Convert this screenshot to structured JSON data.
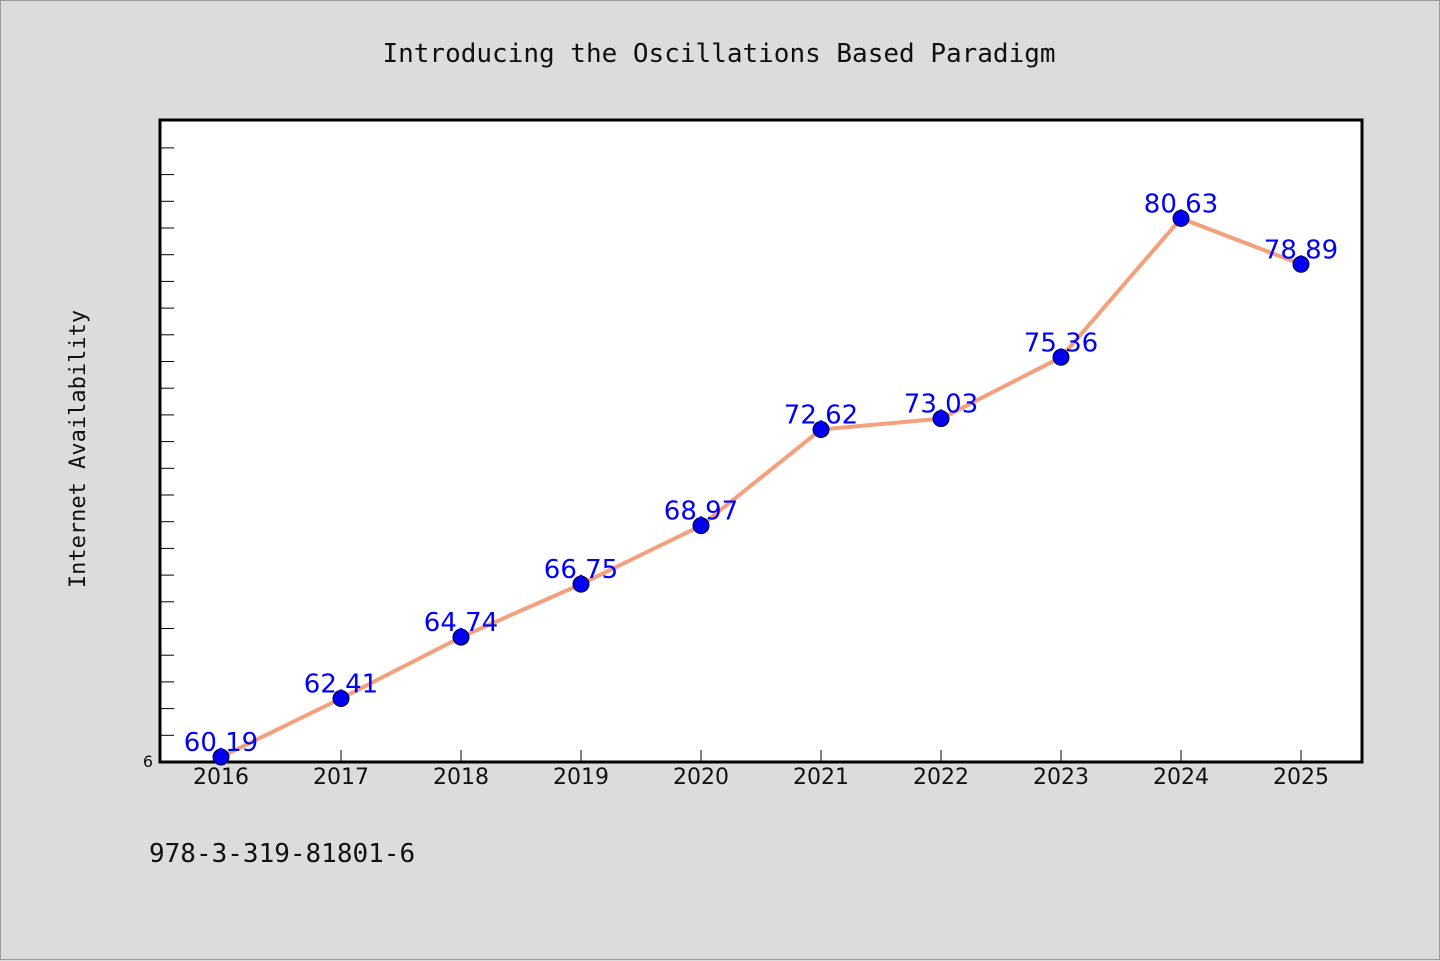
{
  "chart_data": {
    "type": "line",
    "title": "Introducing the Oscillations Based Paradigm",
    "xlabel": "",
    "ylabel": "Internet Availability",
    "categories": [
      "2016",
      "2017",
      "2018",
      "2019",
      "2020",
      "2021",
      "2022",
      "2023",
      "2024",
      "2025"
    ],
    "series": [
      {
        "values": [
          60.19,
          62.41,
          64.74,
          66.75,
          68.97,
          72.62,
          73.03,
          75.36,
          80.63,
          78.89
        ],
        "data_labels": [
          "60.19",
          "62.41",
          "64.74",
          "66.75",
          "68.97",
          "72.62",
          "73.03",
          "75.36",
          "80.63",
          "78.89"
        ],
        "line_color": "#f4a07c",
        "marker_color": "#0000ee"
      }
    ],
    "ylim": [
      60,
      84
    ],
    "ytick_label": "6",
    "grid": false,
    "legend": "none"
  },
  "footnote": "978-3-319-81801-6",
  "colors": {
    "background": "#dcdcdc",
    "plot_background": "#ffffff",
    "data_label": "#0000ff"
  }
}
